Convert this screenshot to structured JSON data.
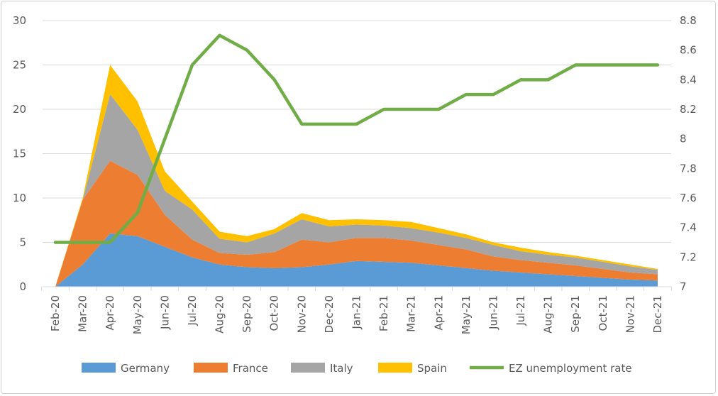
{
  "chart_data": {
    "type": "area",
    "stacked": true,
    "categories": [
      "Feb-20",
      "Mar-20",
      "Apr-20",
      "May-20",
      "Jun-20",
      "Jul-20",
      "Aug-20",
      "Sep-20",
      "Oct-20",
      "Nov-20",
      "Dec-20",
      "Jan-21",
      "Feb-21",
      "Mar-21",
      "Apr-21",
      "May-21",
      "Jun-21",
      "Jul-21",
      "Aug-21",
      "Sep-21",
      "Oct-21",
      "Nov-21",
      "Dec-21"
    ],
    "series": [
      {
        "name": "Germany",
        "axis": "left",
        "type": "area",
        "color": "#5B9BD5",
        "values": [
          0,
          2.5,
          6.0,
          5.7,
          4.5,
          3.3,
          2.5,
          2.2,
          2.1,
          2.2,
          2.5,
          2.9,
          2.8,
          2.7,
          2.4,
          2.1,
          1.8,
          1.6,
          1.4,
          1.2,
          1.0,
          0.8,
          0.7
        ]
      },
      {
        "name": "France",
        "axis": "left",
        "type": "area",
        "color": "#ED7D31",
        "values": [
          0,
          7.3,
          8.2,
          6.9,
          3.6,
          2.0,
          1.3,
          1.4,
          1.8,
          3.1,
          2.5,
          2.6,
          2.7,
          2.5,
          2.3,
          2.1,
          1.6,
          1.4,
          1.3,
          1.2,
          1.0,
          0.8,
          0.7
        ]
      },
      {
        "name": "Italy",
        "axis": "left",
        "type": "area",
        "color": "#A5A5A5",
        "values": [
          0,
          0,
          7.5,
          5.1,
          2.7,
          3.4,
          1.6,
          1.4,
          2.1,
          2.3,
          1.8,
          1.5,
          1.4,
          1.4,
          1.4,
          1.3,
          1.3,
          1.0,
          0.9,
          0.9,
          0.8,
          0.7,
          0.5
        ]
      },
      {
        "name": "Spain",
        "axis": "left",
        "type": "area",
        "color": "#FFC000",
        "values": [
          0,
          0.2,
          3.3,
          3.2,
          2.2,
          0.9,
          0.8,
          0.7,
          0.5,
          0.7,
          0.7,
          0.6,
          0.6,
          0.7,
          0.5,
          0.4,
          0.3,
          0.4,
          0.3,
          0.2,
          0.2,
          0.2,
          0.1
        ]
      },
      {
        "name": "EZ unemployment rate",
        "axis": "right",
        "type": "line",
        "color": "#70AD47",
        "values": [
          7.3,
          7.3,
          7.3,
          7.5,
          8.0,
          8.5,
          8.7,
          8.6,
          8.4,
          8.1,
          8.1,
          8.1,
          8.2,
          8.2,
          8.2,
          8.3,
          8.3,
          8.4,
          8.4,
          8.5,
          8.5,
          8.5,
          8.5
        ]
      }
    ],
    "y_left": {
      "lim": [
        0,
        30
      ],
      "ticks": [
        "0",
        "5",
        "10",
        "15",
        "20",
        "25",
        "30"
      ]
    },
    "y_right": {
      "lim": [
        7,
        8.8
      ],
      "ticks": [
        "7",
        "7.2",
        "7.4",
        "7.6",
        "7.8",
        "8",
        "8.2",
        "8.4",
        "8.6",
        "8.8"
      ]
    },
    "grid": true,
    "legend": "bottom",
    "title": "",
    "xlabel": "",
    "ylabel": ""
  }
}
